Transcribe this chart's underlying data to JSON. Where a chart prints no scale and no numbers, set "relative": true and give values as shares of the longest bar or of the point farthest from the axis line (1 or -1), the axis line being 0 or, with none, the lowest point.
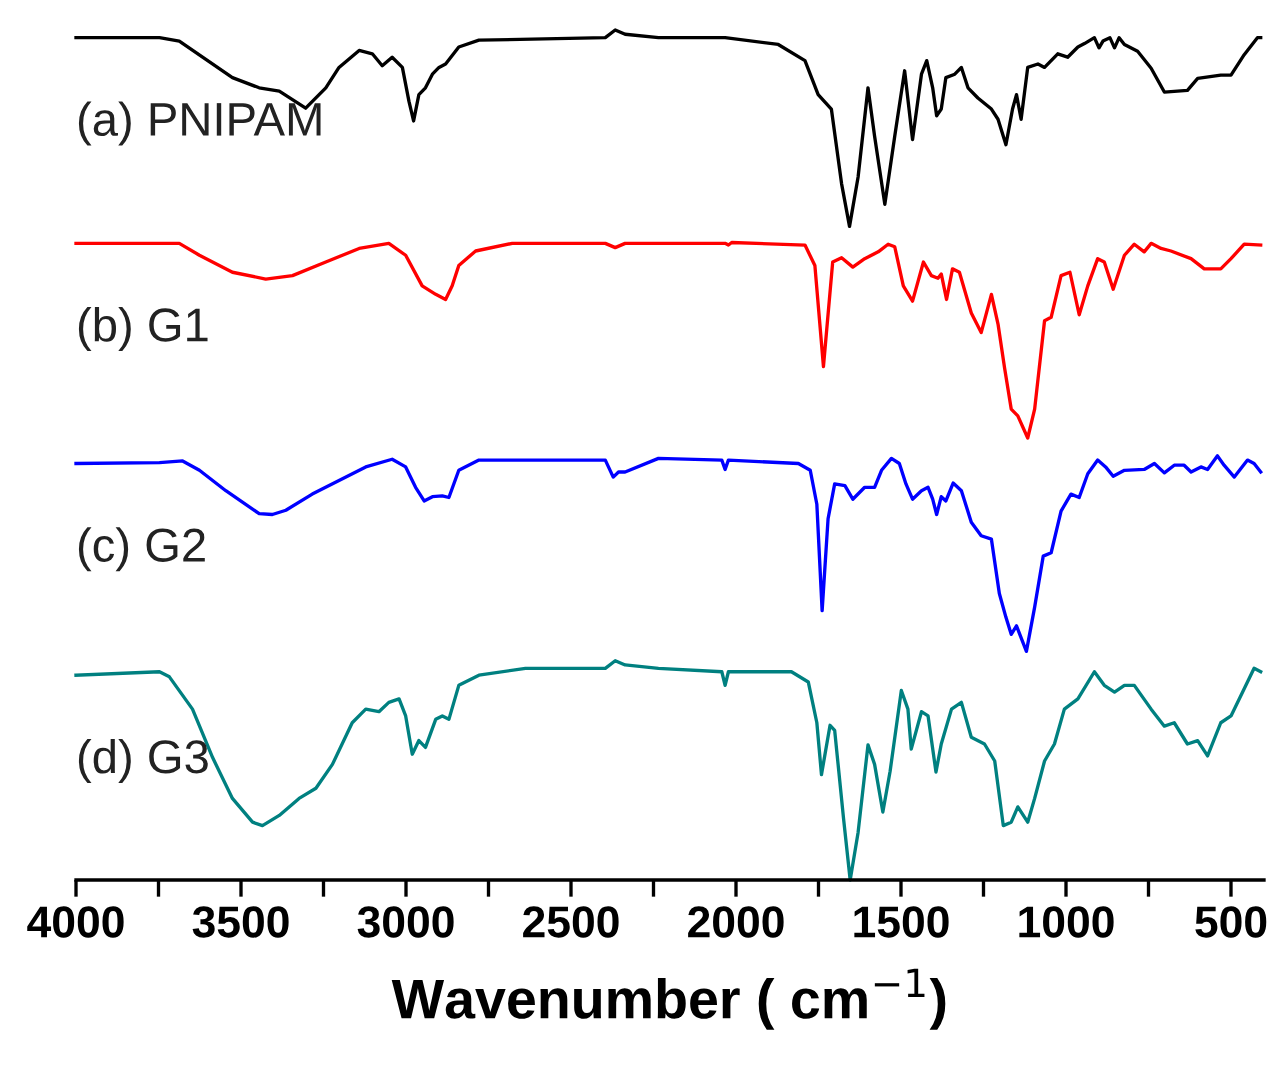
{
  "chart_data": {
    "type": "line",
    "relative": true,
    "xlabel": "Wavenumber ( cm$^{−1}$)",
    "xlim": [
      4000,
      400
    ],
    "xticks": [
      4000,
      {
        "value": 3750,
        "label": null
      },
      3500,
      {
        "value": 3250,
        "label": null
      },
      3000,
      {
        "value": 2750,
        "label": null
      },
      2500,
      {
        "value": 2250,
        "label": null
      },
      2000,
      {
        "value": 1750,
        "label": null
      },
      1500,
      {
        "value": 1250,
        "label": null
      },
      1000,
      {
        "value": 750,
        "label": null
      },
      500
    ],
    "tick_labels": "x",
    "grid": false,
    "legend": false,
    "marker": "none",
    "line_style": "solid",
    "series": [
      {
        "name": "(a) PNIPAM",
        "color": "#000000",
        "x": [
          4000,
          3747,
          3687,
          3526,
          3445,
          3384,
          3304,
          3243,
          3203,
          3142,
          3102,
          3072,
          3042,
          3011,
          2991,
          2977,
          2961,
          2941,
          2920,
          2900,
          2880,
          2840,
          2779,
          2396,
          2366,
          2336,
          2235,
          2033,
          1872,
          1791,
          1751,
          1711,
          1680,
          1656,
          1630,
          1600,
          1580,
          1549,
          1519,
          1489,
          1465,
          1438,
          1422,
          1404,
          1392,
          1378,
          1364,
          1337,
          1317,
          1297,
          1267,
          1226,
          1206,
          1182,
          1162,
          1150,
          1136,
          1116,
          1085,
          1065,
          1025,
          995,
          964,
          944,
          914,
          900,
          888,
          867,
          853,
          839,
          823,
          783,
          742,
          702,
          632,
          601,
          531,
          500,
          460,
          420,
          410
        ],
        "values": [
          0.991,
          0.991,
          0.987,
          0.944,
          0.932,
          0.928,
          0.908,
          0.932,
          0.956,
          0.976,
          0.972,
          0.958,
          0.968,
          0.956,
          0.916,
          0.893,
          0.924,
          0.932,
          0.948,
          0.956,
          0.96,
          0.98,
          0.988,
          0.991,
          1.0,
          0.995,
          0.991,
          0.991,
          0.983,
          0.964,
          0.924,
          0.907,
          0.819,
          0.769,
          0.827,
          0.932,
          0.875,
          0.795,
          0.875,
          0.952,
          0.871,
          0.948,
          0.964,
          0.932,
          0.899,
          0.907,
          0.944,
          0.948,
          0.956,
          0.932,
          0.92,
          0.907,
          0.895,
          0.865,
          0.907,
          0.924,
          0.895,
          0.956,
          0.96,
          0.956,
          0.972,
          0.968,
          0.98,
          0.984,
          0.991,
          0.979,
          0.987,
          0.991,
          0.979,
          0.991,
          0.983,
          0.975,
          0.955,
          0.927,
          0.929,
          0.943,
          0.947,
          0.947,
          0.971,
          0.991,
          0.991
        ]
      },
      {
        "name": "(b) G1",
        "color": "#ff0000",
        "x": [
          4000,
          3687,
          3626,
          3526,
          3425,
          3344,
          3243,
          3142,
          3052,
          3001,
          2951,
          2910,
          2880,
          2860,
          2840,
          2789,
          2678,
          2396,
          2366,
          2336,
          2235,
          2033,
          2023,
          2013,
          1791,
          1761,
          1735,
          1707,
          1680,
          1646,
          1610,
          1569,
          1539,
          1519,
          1493,
          1465,
          1432,
          1408,
          1388,
          1378,
          1362,
          1344,
          1323,
          1287,
          1257,
          1226,
          1206,
          1186,
          1166,
          1146,
          1116,
          1095,
          1065,
          1045,
          1015,
          988,
          960,
          934,
          904,
          884,
          857,
          823,
          793,
          763,
          742,
          712,
          682,
          621,
          581,
          531,
          500,
          460,
          410
        ],
        "values": [
          0.749,
          0.749,
          0.735,
          0.715,
          0.707,
          0.711,
          0.727,
          0.743,
          0.749,
          0.735,
          0.699,
          0.689,
          0.683,
          0.699,
          0.723,
          0.74,
          0.749,
          0.749,
          0.744,
          0.749,
          0.749,
          0.749,
          0.747,
          0.75,
          0.747,
          0.723,
          0.604,
          0.727,
          0.732,
          0.721,
          0.731,
          0.739,
          0.748,
          0.745,
          0.699,
          0.681,
          0.727,
          0.711,
          0.708,
          0.713,
          0.683,
          0.719,
          0.715,
          0.667,
          0.644,
          0.689,
          0.654,
          0.602,
          0.554,
          0.546,
          0.52,
          0.554,
          0.658,
          0.662,
          0.711,
          0.715,
          0.665,
          0.699,
          0.731,
          0.727,
          0.695,
          0.735,
          0.748,
          0.739,
          0.749,
          0.743,
          0.74,
          0.731,
          0.719,
          0.719,
          0.731,
          0.748,
          0.747
        ]
      },
      {
        "name": "(c) G2",
        "color": "#0000ff",
        "x": [
          4000,
          3747,
          3677,
          3626,
          3546,
          3445,
          3405,
          3364,
          3284,
          3203,
          3122,
          3042,
          3001,
          2971,
          2945,
          2920,
          2890,
          2870,
          2840,
          2779,
          2396,
          2372,
          2356,
          2336,
          2235,
          2043,
          2033,
          2023,
          1811,
          1775,
          1755,
          1739,
          1721,
          1701,
          1670,
          1646,
          1610,
          1580,
          1559,
          1529,
          1505,
          1485,
          1465,
          1438,
          1418,
          1404,
          1392,
          1378,
          1364,
          1342,
          1317,
          1287,
          1257,
          1226,
          1202,
          1182,
          1166,
          1150,
          1120,
          1095,
          1069,
          1045,
          1015,
          985,
          960,
          934,
          904,
          880,
          857,
          823,
          763,
          732,
          702,
          672,
          642,
          621,
          591,
          571,
          541,
          521,
          490,
          450,
          430,
          410
        ],
        "values": [
          0.49,
          0.491,
          0.493,
          0.482,
          0.458,
          0.431,
          0.43,
          0.435,
          0.454,
          0.47,
          0.486,
          0.495,
          0.486,
          0.462,
          0.446,
          0.451,
          0.452,
          0.45,
          0.482,
          0.494,
          0.494,
          0.474,
          0.48,
          0.48,
          0.496,
          0.494,
          0.483,
          0.494,
          0.49,
          0.482,
          0.442,
          0.317,
          0.425,
          0.466,
          0.464,
          0.448,
          0.462,
          0.462,
          0.482,
          0.496,
          0.49,
          0.466,
          0.448,
          0.458,
          0.462,
          0.448,
          0.43,
          0.451,
          0.446,
          0.467,
          0.458,
          0.421,
          0.405,
          0.401,
          0.337,
          0.309,
          0.289,
          0.299,
          0.269,
          0.321,
          0.381,
          0.385,
          0.434,
          0.454,
          0.45,
          0.478,
          0.494,
          0.486,
          0.475,
          0.482,
          0.483,
          0.49,
          0.479,
          0.488,
          0.488,
          0.48,
          0.486,
          0.483,
          0.499,
          0.488,
          0.474,
          0.494,
          0.49,
          0.48
        ]
      },
      {
        "name": "(d) G3",
        "color": "#008080",
        "x": [
          4000,
          3747,
          3717,
          3647,
          3586,
          3526,
          3465,
          3435,
          3384,
          3324,
          3273,
          3223,
          3163,
          3122,
          3082,
          3052,
          3021,
          3001,
          2981,
          2961,
          2941,
          2910,
          2890,
          2870,
          2840,
          2779,
          2638,
          2396,
          2366,
          2336,
          2235,
          2043,
          2033,
          2023,
          1832,
          1781,
          1755,
          1741,
          1715,
          1701,
          1674,
          1654,
          1630,
          1600,
          1580,
          1555,
          1533,
          1499,
          1479,
          1469,
          1438,
          1418,
          1394,
          1378,
          1347,
          1317,
          1287,
          1247,
          1216,
          1190,
          1166,
          1146,
          1116,
          1095,
          1065,
          1035,
          1005,
          964,
          914,
          884,
          853,
          823,
          793,
          742,
          702,
          672,
          632,
          601,
          571,
          531,
          500,
          460,
          430,
          410
        ],
        "values": [
          0.241,
          0.245,
          0.239,
          0.201,
          0.144,
          0.096,
          0.068,
          0.064,
          0.076,
          0.096,
          0.108,
          0.136,
          0.185,
          0.201,
          0.198,
          0.209,
          0.213,
          0.193,
          0.148,
          0.164,
          0.156,
          0.189,
          0.193,
          0.189,
          0.229,
          0.241,
          0.249,
          0.249,
          0.258,
          0.253,
          0.249,
          0.245,
          0.229,
          0.245,
          0.245,
          0.233,
          0.185,
          0.124,
          0.182,
          0.176,
          0.072,
          0.0,
          0.056,
          0.159,
          0.136,
          0.08,
          0.128,
          0.223,
          0.201,
          0.154,
          0.198,
          0.193,
          0.127,
          0.16,
          0.201,
          0.209,
          0.168,
          0.16,
          0.14,
          0.064,
          0.068,
          0.086,
          0.068,
          0.096,
          0.14,
          0.16,
          0.201,
          0.213,
          0.245,
          0.229,
          0.221,
          0.229,
          0.229,
          0.201,
          0.181,
          0.185,
          0.16,
          0.164,
          0.146,
          0.185,
          0.193,
          0.225,
          0.249,
          0.245
        ]
      }
    ]
  }
}
